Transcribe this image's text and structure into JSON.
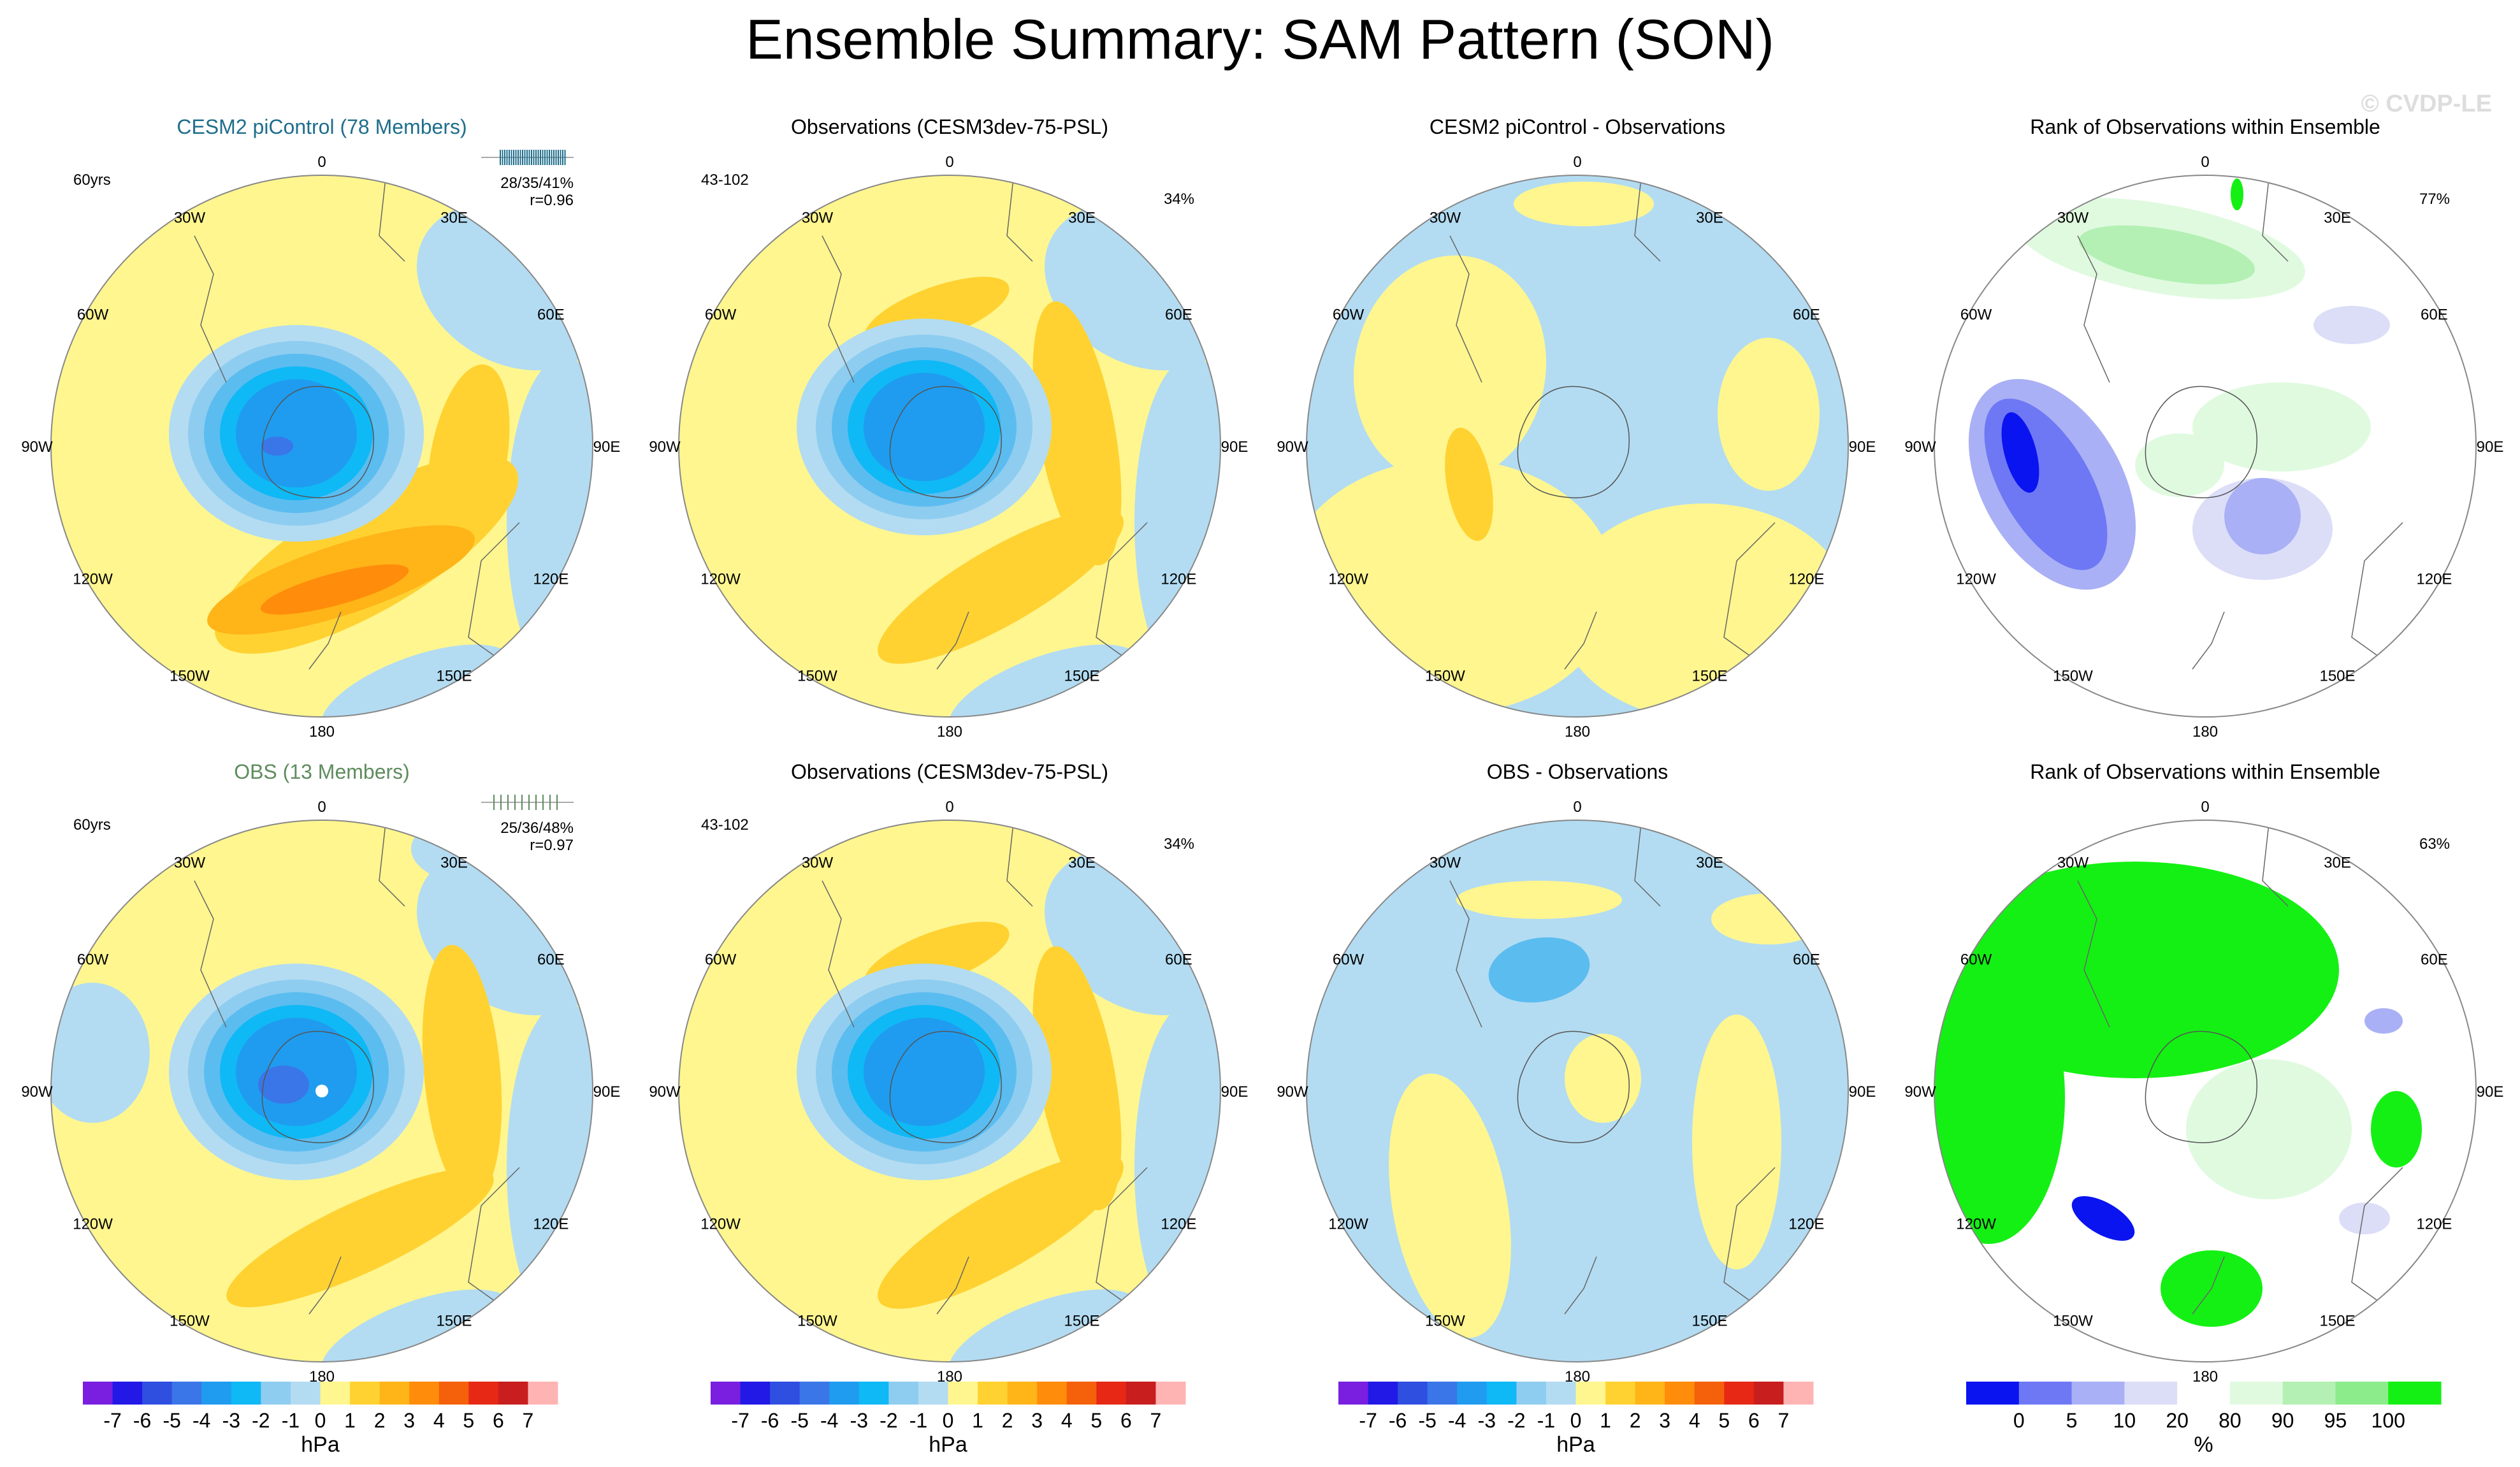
{
  "page_title": "Ensemble Summary: SAM Pattern (SON)",
  "watermark": "© CVDP-LE",
  "colors": {
    "blue_title": "#1f6e8c",
    "green_title": "#5e8c5e",
    "ocean_light": "#b3dcf2",
    "land_yellow": "#fff68f"
  },
  "lon_labels": [
    "0",
    "30E",
    "60E",
    "90E",
    "120E",
    "150E",
    "180",
    "150W",
    "120W",
    "90W",
    "60W",
    "30W"
  ],
  "panels": [
    {
      "id": "r1c1",
      "title": "CESM2 piControl (78 Members)",
      "title_color": "blue",
      "left_label": "60yrs",
      "stats": "28/35/41%",
      "corr": "r=0.96",
      "kind": "psl",
      "variant": "cesm"
    },
    {
      "id": "r1c2",
      "title": "Observations (CESM3dev-75-PSL)",
      "left_label": "43-102",
      "right_label": "34%",
      "kind": "psl",
      "variant": "obs"
    },
    {
      "id": "r1c3",
      "title": "CESM2 piControl - Observations",
      "kind": "diff",
      "variant": "diff1"
    },
    {
      "id": "r1c4",
      "title": "Rank of Observations within Ensemble",
      "right_label": "77%",
      "kind": "rank",
      "variant": "rank1"
    },
    {
      "id": "r2c1",
      "title": "OBS (13 Members)",
      "title_color": "green",
      "left_label": "60yrs",
      "stats": "25/36/48%",
      "corr": "r=0.97",
      "kind": "psl",
      "variant": "obsens"
    },
    {
      "id": "r2c2",
      "title": "Observations (CESM3dev-75-PSL)",
      "left_label": "43-102",
      "right_label": "34%",
      "kind": "psl",
      "variant": "obs"
    },
    {
      "id": "r2c3",
      "title": "OBS - Observations",
      "kind": "diff",
      "variant": "diff2"
    },
    {
      "id": "r2c4",
      "title": "Rank of Observations within Ensemble",
      "right_label": "63%",
      "kind": "rank",
      "variant": "rank2"
    }
  ],
  "colorbars": [
    {
      "kind": "hpa",
      "unit": "hPa",
      "labels": [
        "-7",
        "-6",
        "-5",
        "-4",
        "-3",
        "-2",
        "-1",
        "0",
        "1",
        "2",
        "3",
        "4",
        "5",
        "6",
        "7"
      ],
      "colors": [
        "#7a1fe0",
        "#2219e6",
        "#2f4fe0",
        "#3a76e8",
        "#1f9cf0",
        "#0fb9f5",
        "#8ecdf0",
        "#b3dcf2",
        "#fff68f",
        "#ffd232",
        "#ffb418",
        "#ff8c0a",
        "#f5600a",
        "#e62814",
        "#c81e1e",
        "#ffb4b4"
      ]
    },
    {
      "kind": "hpa",
      "unit": "hPa",
      "labels": [
        "-7",
        "-6",
        "-5",
        "-4",
        "-3",
        "-2",
        "-1",
        "0",
        "1",
        "2",
        "3",
        "4",
        "5",
        "6",
        "7"
      ],
      "colors": [
        "#7a1fe0",
        "#2219e6",
        "#2f4fe0",
        "#3a76e8",
        "#1f9cf0",
        "#0fb9f5",
        "#8ecdf0",
        "#b3dcf2",
        "#fff68f",
        "#ffd232",
        "#ffb418",
        "#ff8c0a",
        "#f5600a",
        "#e62814",
        "#c81e1e",
        "#ffb4b4"
      ]
    },
    {
      "kind": "hpa",
      "unit": "hPa",
      "labels": [
        "-7",
        "-6",
        "-5",
        "-4",
        "-3",
        "-2",
        "-1",
        "0",
        "1",
        "2",
        "3",
        "4",
        "5",
        "6",
        "7"
      ],
      "colors": [
        "#7a1fe0",
        "#2219e6",
        "#2f4fe0",
        "#3a76e8",
        "#1f9cf0",
        "#0fb9f5",
        "#8ecdf0",
        "#b3dcf2",
        "#fff68f",
        "#ffd232",
        "#ffb418",
        "#ff8c0a",
        "#f5600a",
        "#e62814",
        "#c81e1e",
        "#ffb4b4"
      ]
    },
    {
      "kind": "pct",
      "unit": "%",
      "labels": [
        "0",
        "5",
        "10",
        "20",
        "80",
        "90",
        "95",
        "100"
      ],
      "colors": [
        "#0a14f0",
        "#6e78f5",
        "#aab0f5",
        "#dcdef8",
        "#ffffff",
        "#e0fae0",
        "#b4f0b4",
        "#8cec8c",
        "#14f014"
      ]
    }
  ],
  "chart_data": {
    "type": "polar-map",
    "title": "Ensemble Summary: SAM Pattern (SON)",
    "units": "hPa",
    "contour_levels": [
      -7,
      -6,
      -5,
      -4,
      -3,
      -2,
      -1,
      0,
      1,
      2,
      3,
      4,
      5,
      6,
      7
    ],
    "rank_levels_percent": [
      0,
      5,
      10,
      20,
      80,
      90,
      95,
      100
    ],
    "panels": [
      {
        "name": "CESM2 piControl (78 Members)",
        "min_hpa": -6,
        "max_hpa": 3,
        "pattern_correlation": 0.96,
        "stats": "28/35/41%"
      },
      {
        "name": "Observations (CESM3dev-75-PSL)",
        "min_hpa": -6,
        "max_hpa": 2,
        "explained_variance": "34%"
      },
      {
        "name": "CESM2 piControl - Observations",
        "min_hpa": -1,
        "max_hpa": 1
      },
      {
        "name": "Rank of Observations within Ensemble",
        "percent": "77%"
      },
      {
        "name": "OBS (13 Members)",
        "min_hpa": -6,
        "max_hpa": 2,
        "pattern_correlation": 0.97,
        "stats": "25/36/48%"
      },
      {
        "name": "Observations (CESM3dev-75-PSL)",
        "min_hpa": -6,
        "max_hpa": 2,
        "explained_variance": "34%"
      },
      {
        "name": "OBS - Observations",
        "min_hpa": -1,
        "max_hpa": 1
      },
      {
        "name": "Rank of Observations within Ensemble",
        "percent": "63%"
      }
    ]
  }
}
